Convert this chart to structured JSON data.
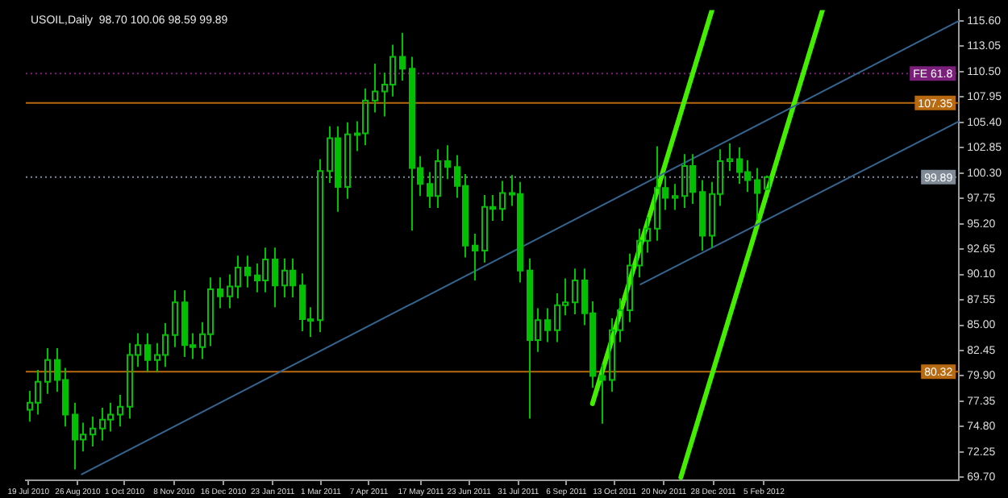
{
  "chart_data": {
    "type": "candlestick",
    "title": "USOIL,Daily  98.70 100.06 98.59 99.89",
    "color": "#00c000",
    "x": [
      "2010-07-19",
      "2010-07-26",
      "2010-08-02",
      "2010-08-09",
      "2010-08-16",
      "2010-08-23",
      "2010-08-30",
      "2010-09-06",
      "2010-09-13",
      "2010-09-20",
      "2010-09-27",
      "2010-10-04",
      "2010-10-11",
      "2010-10-18",
      "2010-10-25",
      "2010-11-01",
      "2010-11-08",
      "2010-11-15",
      "2010-11-22",
      "2010-11-29",
      "2010-12-06",
      "2010-12-13",
      "2010-12-20",
      "2010-12-27",
      "2011-01-03",
      "2011-01-10",
      "2011-01-17",
      "2011-01-24",
      "2011-01-31",
      "2011-02-07",
      "2011-02-14",
      "2011-02-21",
      "2011-02-28",
      "2011-03-07",
      "2011-03-14",
      "2011-03-21",
      "2011-03-28",
      "2011-04-04",
      "2011-04-11",
      "2011-04-18",
      "2011-04-25",
      "2011-05-02",
      "2011-05-09",
      "2011-05-16",
      "2011-05-23",
      "2011-05-30",
      "2011-06-06",
      "2011-06-13",
      "2011-06-20",
      "2011-06-27",
      "2011-07-04",
      "2011-07-11",
      "2011-07-18",
      "2011-07-25",
      "2011-08-01",
      "2011-08-08",
      "2011-08-15",
      "2011-08-22",
      "2011-08-29",
      "2011-09-05",
      "2011-09-12",
      "2011-09-19",
      "2011-09-26",
      "2011-10-03",
      "2011-10-10",
      "2011-10-17",
      "2011-10-24",
      "2011-10-31",
      "2011-11-07",
      "2011-11-14",
      "2011-11-21",
      "2011-11-28",
      "2011-12-05",
      "2011-12-12",
      "2011-12-19",
      "2011-12-26",
      "2012-01-02",
      "2012-01-09",
      "2012-01-16",
      "2012-01-23",
      "2012-01-30",
      "2012-02-06"
    ],
    "ohlc": [
      [
        76.5,
        78.4,
        75.3,
        77.2
      ],
      [
        77.2,
        80.5,
        76.0,
        79.3
      ],
      [
        79.3,
        82.7,
        78.1,
        81.5
      ],
      [
        81.5,
        82.7,
        78.3,
        79.5
      ],
      [
        79.5,
        80.7,
        74.8,
        76.0
      ],
      [
        76.0,
        77.2,
        70.5,
        73.5
      ],
      [
        73.5,
        75.2,
        72.3,
        74.0
      ],
      [
        74.0,
        75.8,
        72.8,
        74.6
      ],
      [
        74.6,
        76.7,
        73.4,
        75.5
      ],
      [
        75.5,
        77.2,
        74.3,
        76.0
      ],
      [
        76.0,
        78.0,
        74.8,
        76.8
      ],
      [
        76.8,
        83.2,
        75.6,
        82.0
      ],
      [
        82.0,
        84.2,
        80.8,
        83.0
      ],
      [
        83.0,
        84.2,
        80.3,
        81.5
      ],
      [
        81.5,
        83.2,
        80.3,
        82.0
      ],
      [
        82.0,
        85.2,
        80.8,
        84.0
      ],
      [
        84.0,
        88.5,
        82.8,
        87.3
      ],
      [
        87.3,
        88.5,
        81.8,
        83.0
      ],
      [
        83.0,
        84.2,
        81.6,
        82.8
      ],
      [
        82.8,
        85.3,
        81.6,
        84.1
      ],
      [
        84.1,
        89.8,
        82.9,
        88.6
      ],
      [
        88.6,
        89.8,
        86.7,
        87.9
      ],
      [
        87.9,
        90.1,
        86.7,
        88.9
      ],
      [
        88.9,
        92.0,
        87.7,
        90.8
      ],
      [
        90.8,
        92.0,
        88.8,
        90.0
      ],
      [
        90.0,
        91.2,
        88.3,
        89.5
      ],
      [
        89.5,
        92.8,
        88.3,
        91.6
      ],
      [
        91.6,
        92.8,
        86.8,
        89.0
      ],
      [
        89.0,
        91.7,
        87.8,
        90.5
      ],
      [
        90.5,
        91.7,
        87.8,
        89.0
      ],
      [
        89.0,
        90.2,
        84.4,
        85.6
      ],
      [
        85.6,
        86.8,
        83.8,
        85.5
      ],
      [
        85.5,
        101.7,
        84.3,
        100.5
      ],
      [
        100.5,
        105.0,
        99.3,
        103.8
      ],
      [
        103.8,
        105.0,
        96.4,
        98.9
      ],
      [
        98.9,
        105.4,
        97.7,
        104.2
      ],
      [
        104.2,
        105.5,
        102.5,
        104.3
      ],
      [
        104.3,
        108.8,
        103.1,
        107.6
      ],
      [
        107.6,
        111.3,
        106.4,
        108.5
      ],
      [
        108.5,
        110.4,
        106.0,
        109.2
      ],
      [
        109.2,
        113.2,
        108.0,
        112.0
      ],
      [
        112.0,
        114.4,
        109.6,
        110.8
      ],
      [
        110.8,
        112.0,
        94.5,
        100.8
      ],
      [
        100.8,
        102.0,
        98.0,
        99.2
      ],
      [
        99.2,
        100.4,
        96.8,
        98.0
      ],
      [
        98.0,
        102.7,
        96.8,
        101.5
      ],
      [
        101.5,
        103.1,
        99.7,
        100.9
      ],
      [
        100.9,
        102.1,
        97.8,
        99.0
      ],
      [
        99.0,
        100.2,
        91.8,
        93.0
      ],
      [
        93.0,
        94.2,
        89.5,
        92.5
      ],
      [
        92.5,
        98.1,
        91.3,
        96.9
      ],
      [
        96.9,
        98.1,
        95.5,
        96.7
      ],
      [
        96.7,
        99.5,
        95.5,
        98.3
      ],
      [
        98.3,
        100.1,
        97.0,
        98.2
      ],
      [
        98.2,
        99.4,
        89.3,
        90.5
      ],
      [
        90.5,
        91.7,
        75.6,
        83.5
      ],
      [
        83.5,
        86.7,
        82.3,
        85.5
      ],
      [
        85.5,
        86.7,
        83.3,
        84.5
      ],
      [
        84.5,
        88.2,
        83.3,
        87.0
      ],
      [
        87.0,
        89.7,
        86.0,
        87.3
      ],
      [
        87.3,
        90.7,
        86.1,
        89.5
      ],
      [
        89.5,
        90.7,
        85.0,
        86.2
      ],
      [
        86.2,
        87.4,
        78.7,
        79.9
      ],
      [
        79.9,
        81.1,
        75.1,
        79.5
      ],
      [
        79.5,
        85.7,
        78.3,
        84.5
      ],
      [
        84.5,
        87.7,
        83.3,
        86.5
      ],
      [
        86.5,
        92.2,
        85.3,
        91.0
      ],
      [
        91.0,
        94.7,
        89.8,
        93.5
      ],
      [
        93.5,
        95.9,
        92.3,
        94.7
      ],
      [
        94.7,
        103.0,
        93.5,
        98.8
      ],
      [
        98.8,
        100.0,
        96.6,
        97.8
      ],
      [
        97.8,
        99.2,
        96.6,
        98.0
      ],
      [
        98.0,
        102.2,
        96.8,
        101.0
      ],
      [
        101.0,
        102.2,
        97.2,
        98.4
      ],
      [
        98.4,
        99.6,
        92.5,
        94.0
      ],
      [
        94.0,
        99.4,
        92.8,
        98.2
      ],
      [
        98.2,
        102.7,
        97.0,
        101.5
      ],
      [
        101.5,
        103.3,
        100.5,
        101.7
      ],
      [
        101.7,
        102.9,
        99.2,
        100.4
      ],
      [
        100.4,
        101.6,
        98.4,
        99.6
      ],
      [
        99.6,
        100.8,
        95.6,
        98.3
      ],
      [
        98.7,
        100.06,
        98.59,
        99.89
      ]
    ],
    "series": [
      {
        "type": "line",
        "color": "#35658f",
        "x": [
          "2010-08-29",
          "2012-07-04"
        ],
        "values": [
          70.0,
          115.6
        ]
      },
      {
        "type": "line",
        "color": "#35658f",
        "x": [
          "2011-11-02",
          "2012-07-04"
        ],
        "values": [
          89.1,
          105.5
        ]
      },
      {
        "type": "line",
        "color": "#44ee00",
        "x": [
          "2011-09-26",
          "2011-12-27"
        ],
        "values": [
          77.1,
          116.7
        ]
      },
      {
        "type": "line",
        "color": "#44ee00",
        "x": [
          "2011-12-03",
          "2012-03-21"
        ],
        "values": [
          69.7,
          116.7
        ]
      }
    ],
    "ref_lines": [
      {
        "axis": "y",
        "value": 107.35,
        "label": "107.35",
        "color": "#b86a12"
      },
      {
        "axis": "y",
        "value": 99.89,
        "label": "99.89",
        "color": "#7f8a96",
        "line_style": "dotted"
      },
      {
        "axis": "y",
        "value": 80.32,
        "label": "80.32",
        "color": "#b86a12"
      },
      {
        "axis": "y",
        "value": 110.3,
        "label": "FE 61.8",
        "color": "#7a1f7a",
        "line_style": "dotted"
      }
    ],
    "xlim": [
      "2010-07-17",
      "2012-07-04"
    ],
    "xticks": [
      {
        "value": "2010-07-19",
        "label": "19 Jul 2010"
      },
      {
        "value": "2010-08-26",
        "label": "26 Aug 2010"
      },
      {
        "value": "2010-10-01",
        "label": "1 Oct 2010"
      },
      {
        "value": "2010-11-08",
        "label": "8 Nov 2010"
      },
      {
        "value": "2010-12-16",
        "label": "16 Dec 2010"
      },
      {
        "value": "2011-01-23",
        "label": "23 Jan 2011"
      },
      {
        "value": "2011-03-01",
        "label": "1 Mar 2011"
      },
      {
        "value": "2011-04-07",
        "label": "7 Apr 2011"
      },
      {
        "value": "2011-05-17",
        "label": "17 May 2011"
      },
      {
        "value": "2011-06-23",
        "label": "23 Jun 2011"
      },
      {
        "value": "2011-07-31",
        "label": "31 Jul 2011"
      },
      {
        "value": "2011-09-06",
        "label": "6 Sep 2011"
      },
      {
        "value": "2011-10-13",
        "label": "13 Oct 2011"
      },
      {
        "value": "2011-11-20",
        "label": "20 Nov 2011"
      },
      {
        "value": "2011-12-28",
        "label": "28 Dec 2011"
      },
      {
        "value": "2012-02-05",
        "label": "5 Feb 2012"
      }
    ],
    "ylim": [
      69.4,
      116.7
    ],
    "yticks": [
      {
        "value": 69.7,
        "label": "69.70"
      },
      {
        "value": 72.25,
        "label": "72.25"
      },
      {
        "value": 74.8,
        "label": "74.80"
      },
      {
        "value": 77.35,
        "label": "77.35"
      },
      {
        "value": 79.9,
        "label": "79.90"
      },
      {
        "value": 82.45,
        "label": "82.45"
      },
      {
        "value": 85,
        "label": "85.00"
      },
      {
        "value": 87.55,
        "label": "87.55"
      },
      {
        "value": 90.1,
        "label": "90.10"
      },
      {
        "value": 92.65,
        "label": "92.65"
      },
      {
        "value": 95.2,
        "label": "95.20"
      },
      {
        "value": 97.75,
        "label": "97.75"
      },
      {
        "value": 100.3,
        "label": "100.30"
      },
      {
        "value": 102.85,
        "label": "102.85"
      },
      {
        "value": 105.4,
        "label": "105.40"
      },
      {
        "value": 107.95,
        "label": "107.95"
      },
      {
        "value": 110.5,
        "label": "110.50"
      },
      {
        "value": 113.05,
        "label": "113.05"
      },
      {
        "value": 115.6,
        "label": "115.60"
      }
    ]
  }
}
